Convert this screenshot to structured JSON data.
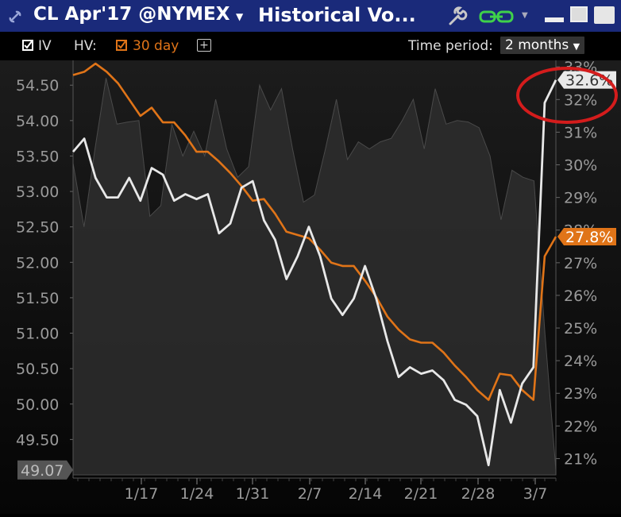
{
  "window": {
    "symbol": "CL Apr'17 @NYMEX",
    "title": "Historical Vo...",
    "link_icon": "link-chain-icon",
    "accent": "#1a2a7a"
  },
  "toolbar": {
    "iv_label": "IV",
    "hv_label": "HV:",
    "hv_period": "30 day",
    "add_label": "+",
    "time_period_label": "Time period:",
    "time_period_value": "2 months",
    "iv_checked": true,
    "hv_checked": true
  },
  "chart_data": {
    "type": "line",
    "x_ticks": [
      "1/17",
      "1/24",
      "1/31",
      "2/7",
      "2/14",
      "2/21",
      "2/28",
      "3/7"
    ],
    "left_axis": {
      "ticks": [
        "54.50",
        "54.00",
        "53.50",
        "53.00",
        "52.50",
        "52.00",
        "51.50",
        "51.00",
        "50.50",
        "50.00",
        "49.50"
      ],
      "range": [
        49.0,
        54.85
      ]
    },
    "right_axis": {
      "ticks": [
        "33%",
        "32%",
        "31%",
        "30%",
        "29%",
        "28%",
        "27%",
        "26%",
        "25%",
        "24%",
        "23%",
        "22%",
        "21%"
      ],
      "range": [
        20.5,
        33.2
      ]
    },
    "series": [
      {
        "kind": "price-area",
        "color": "#3a3a3a",
        "values": [
          53.4,
          52.5,
          53.6,
          54.6,
          53.95,
          53.98,
          54.0,
          52.65,
          52.8,
          53.95,
          53.5,
          53.85,
          53.5,
          54.3,
          53.6,
          53.2,
          53.35,
          54.5,
          54.15,
          54.45,
          53.6,
          52.85,
          52.95,
          53.6,
          54.3,
          53.45,
          53.7,
          53.6,
          53.7,
          53.75,
          54.0,
          54.3,
          53.6,
          54.45,
          53.95,
          54.0,
          53.98,
          53.9,
          53.5,
          52.6,
          53.3,
          53.2,
          53.15,
          51.0,
          49.07
        ]
      },
      {
        "kind": "iv",
        "color": "#e8e8e8",
        "values": [
          30.4,
          30.8,
          29.6,
          29.0,
          29.0,
          29.6,
          28.9,
          29.9,
          29.7,
          28.9,
          29.1,
          28.95,
          29.1,
          27.9,
          28.2,
          29.3,
          29.5,
          28.3,
          27.7,
          26.5,
          27.2,
          28.1,
          27.2,
          25.9,
          25.4,
          25.9,
          26.9,
          25.9,
          24.6,
          23.5,
          23.8,
          23.6,
          23.7,
          23.4,
          22.8,
          22.65,
          22.3,
          20.8,
          23.1,
          22.1,
          23.3,
          23.8,
          31.9,
          32.6
        ]
      },
      {
        "kind": "hv",
        "color": "#e07418",
        "values": [
          32.75,
          32.85,
          33.1,
          32.85,
          32.5,
          32.0,
          31.5,
          31.75,
          31.3,
          31.3,
          30.9,
          30.4,
          30.4,
          30.1,
          29.75,
          29.35,
          28.9,
          28.95,
          28.5,
          27.95,
          27.85,
          27.75,
          27.4,
          27.0,
          26.9,
          26.9,
          26.45,
          25.95,
          25.35,
          24.95,
          24.65,
          24.55,
          24.55,
          24.25,
          23.85,
          23.5,
          23.1,
          22.8,
          23.6,
          23.55,
          23.1,
          22.8,
          27.2,
          27.8
        ]
      }
    ],
    "labels": {
      "iv_last": "32.6%",
      "hv_last": "27.8%",
      "price_last": "49.07"
    },
    "annotation": {
      "shape": "ellipse",
      "color": "#d41c1c"
    }
  }
}
